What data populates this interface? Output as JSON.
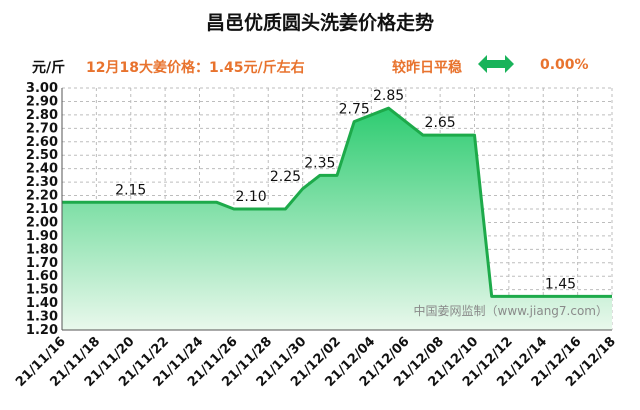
{
  "header": {
    "title": "昌邑优质圆头洗姜价格走势",
    "unit": "元/斤",
    "price_info": "12月18大姜价格：1.45元/斤左右",
    "trend_label": "较昨日平稳",
    "trend_icon": "double-arrow-icon",
    "change": "0.00%"
  },
  "watermark": "中国姜网监制（www.jiang7.com）",
  "colors": {
    "line": "#1daa4a",
    "fill_top": "#2ecc71",
    "fill_bottom": "#e9f8ec",
    "accent": "#e8732e",
    "icon": "#19b35a"
  },
  "chart_data": {
    "type": "area",
    "title": "昌邑优质圆头洗姜价格走势",
    "ylabel": "元/斤",
    "ylim": [
      1.2,
      3.0
    ],
    "y_ticks": [
      "1.20",
      "1.30",
      "1.40",
      "1.50",
      "1.60",
      "1.70",
      "1.80",
      "1.90",
      "2.00",
      "2.10",
      "2.20",
      "2.30",
      "2.40",
      "2.50",
      "2.60",
      "2.70",
      "2.80",
      "2.90",
      "3.00"
    ],
    "x_range": [
      "2021-11-16",
      "2021-12-18"
    ],
    "x_ticks": [
      "21/11/16",
      "21/11/18",
      "21/11/20",
      "21/11/22",
      "21/11/24",
      "21/11/26",
      "21/11/28",
      "21/11/30",
      "21/12/02",
      "21/12/04",
      "21/12/06",
      "21/12/08",
      "21/12/10",
      "21/12/12",
      "21/12/14",
      "21/12/16",
      "21/12/18"
    ],
    "grid": true,
    "series": [
      {
        "x": [
          "2021-11-16",
          "2021-11-25",
          "2021-11-26",
          "2021-11-29",
          "2021-11-30",
          "2021-12-01",
          "2021-12-02",
          "2021-12-03",
          "2021-12-05",
          "2021-12-07",
          "2021-12-10",
          "2021-12-11",
          "2021-12-18"
        ],
        "values": [
          2.15,
          2.15,
          2.1,
          2.1,
          2.25,
          2.35,
          2.35,
          2.75,
          2.85,
          2.65,
          2.65,
          1.45,
          1.45
        ]
      }
    ],
    "data_labels": [
      {
        "x": "2021-11-20",
        "value": 2.15,
        "text": "2.15"
      },
      {
        "x": "2021-11-27",
        "value": 2.1,
        "text": "2.10"
      },
      {
        "x": "2021-11-29",
        "value": 2.25,
        "text": "2.25"
      },
      {
        "x": "2021-12-01",
        "value": 2.35,
        "text": "2.35"
      },
      {
        "x": "2021-12-03",
        "value": 2.75,
        "text": "2.75"
      },
      {
        "x": "2021-12-05",
        "value": 2.85,
        "text": "2.85"
      },
      {
        "x": "2021-12-08",
        "value": 2.65,
        "text": "2.65"
      },
      {
        "x": "2021-12-15",
        "value": 1.45,
        "text": "1.45"
      }
    ]
  }
}
